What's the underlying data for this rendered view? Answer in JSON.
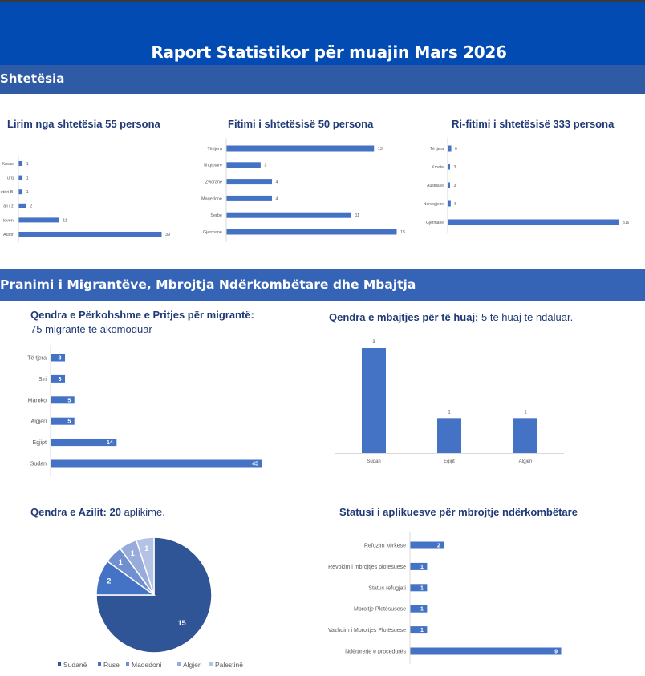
{
  "header": {
    "title": "Raport Statistikor për muajin Mars 2026"
  },
  "sections": {
    "citizenship": "Shtetësia",
    "migrants": "Pranimi i Migrantëve, Mbrojtja Ndërkombëtare dhe Mbajtja"
  },
  "colors": {
    "banner": "#014bb2",
    "section": "#2e5aa6",
    "bar": "#4472c4",
    "title": "#1f3a76"
  },
  "texts": {
    "reception_title": "Qendra e Përkohshme e Pritjes për migrantë:",
    "reception_sub": "75 migrantë të akomoduar",
    "detention_title": "Qendra e mbajtjes për të huaj:",
    "detention_sub": " 5 të huaj të ndaluar.",
    "asylum_title": "Qendra e Azilit: 20",
    "asylum_sub": " aplikime."
  },
  "chart_data": [
    {
      "type": "bar",
      "orientation": "horizontal",
      "title": "Lirim nga shtetësia 55 persona",
      "categories": [
        "Kroaci",
        "Turqi",
        "eetëri B.",
        "ali i zi",
        "loveni",
        "Austri"
      ],
      "values": [
        1,
        1,
        1,
        2,
        11,
        39
      ],
      "xlim": [
        0,
        39
      ]
    },
    {
      "type": "bar",
      "orientation": "horizontal",
      "title": "Fitimi i shtetësisë  50 persona",
      "categories": [
        "Të tjera",
        "Shqiptare",
        "Zvicrane",
        "Maqedone",
        "Serbe",
        "Gjermane"
      ],
      "values": [
        13,
        3,
        4,
        4,
        11,
        15
      ],
      "xlim": [
        0,
        15
      ]
    },
    {
      "type": "bar",
      "orientation": "horizontal",
      "title": "Ri-fitimi i shtetësisë  333 persona",
      "categories": [
        "Të tjera",
        "Kroate",
        "Austriake",
        "Norvegjeze",
        "Gjermane"
      ],
      "values": [
        6,
        3,
        3,
        5,
        316
      ],
      "xlim": [
        0,
        316
      ]
    },
    {
      "type": "bar",
      "orientation": "horizontal",
      "title": "Qendra e Përkohshme e Pritjes për migrantë: 75 migrantë të akomoduar",
      "categories": [
        "Të tjera",
        "Siri",
        "Maroko",
        "Algjeri",
        "Egjipt",
        "Sudan"
      ],
      "values": [
        3,
        3,
        5,
        5,
        14,
        45
      ],
      "xlim": [
        0,
        45
      ]
    },
    {
      "type": "bar",
      "orientation": "vertical",
      "title": "Qendra e mbajtjes për të huaj: 5 të huaj të ndaluar.",
      "categories": [
        "Sudan",
        "Egipt",
        "Algjeri"
      ],
      "values": [
        3,
        1,
        1
      ],
      "ylim": [
        0,
        3
      ]
    },
    {
      "type": "pie",
      "title": "Qendra e Azilit: 20 aplikime.",
      "categories": [
        "Sudanë",
        "Ruse",
        "Maqedoni",
        "Algjeri",
        "Palestinë"
      ],
      "values": [
        15,
        2,
        1,
        1,
        1
      ],
      "colors": [
        "#2f5597",
        "#4472c4",
        "#6f8fcf",
        "#97acdb",
        "#b4c2e6"
      ],
      "legend": "bottom"
    },
    {
      "type": "bar",
      "orientation": "horizontal",
      "title": "Statusi i aplikuesve për mbrojtje ndërkombëtare",
      "categories": [
        "Refuzim kërkese",
        "Revokim i mbrojtjës plotësuese",
        "Status refugjati",
        "Mbrojtje Plotësusese",
        "Vazhdim i Mbrojtjes Plotësuese",
        "Ndërprerje e procedurës"
      ],
      "values": [
        2,
        1,
        1,
        1,
        1,
        9
      ],
      "xlim": [
        0,
        9
      ]
    }
  ]
}
